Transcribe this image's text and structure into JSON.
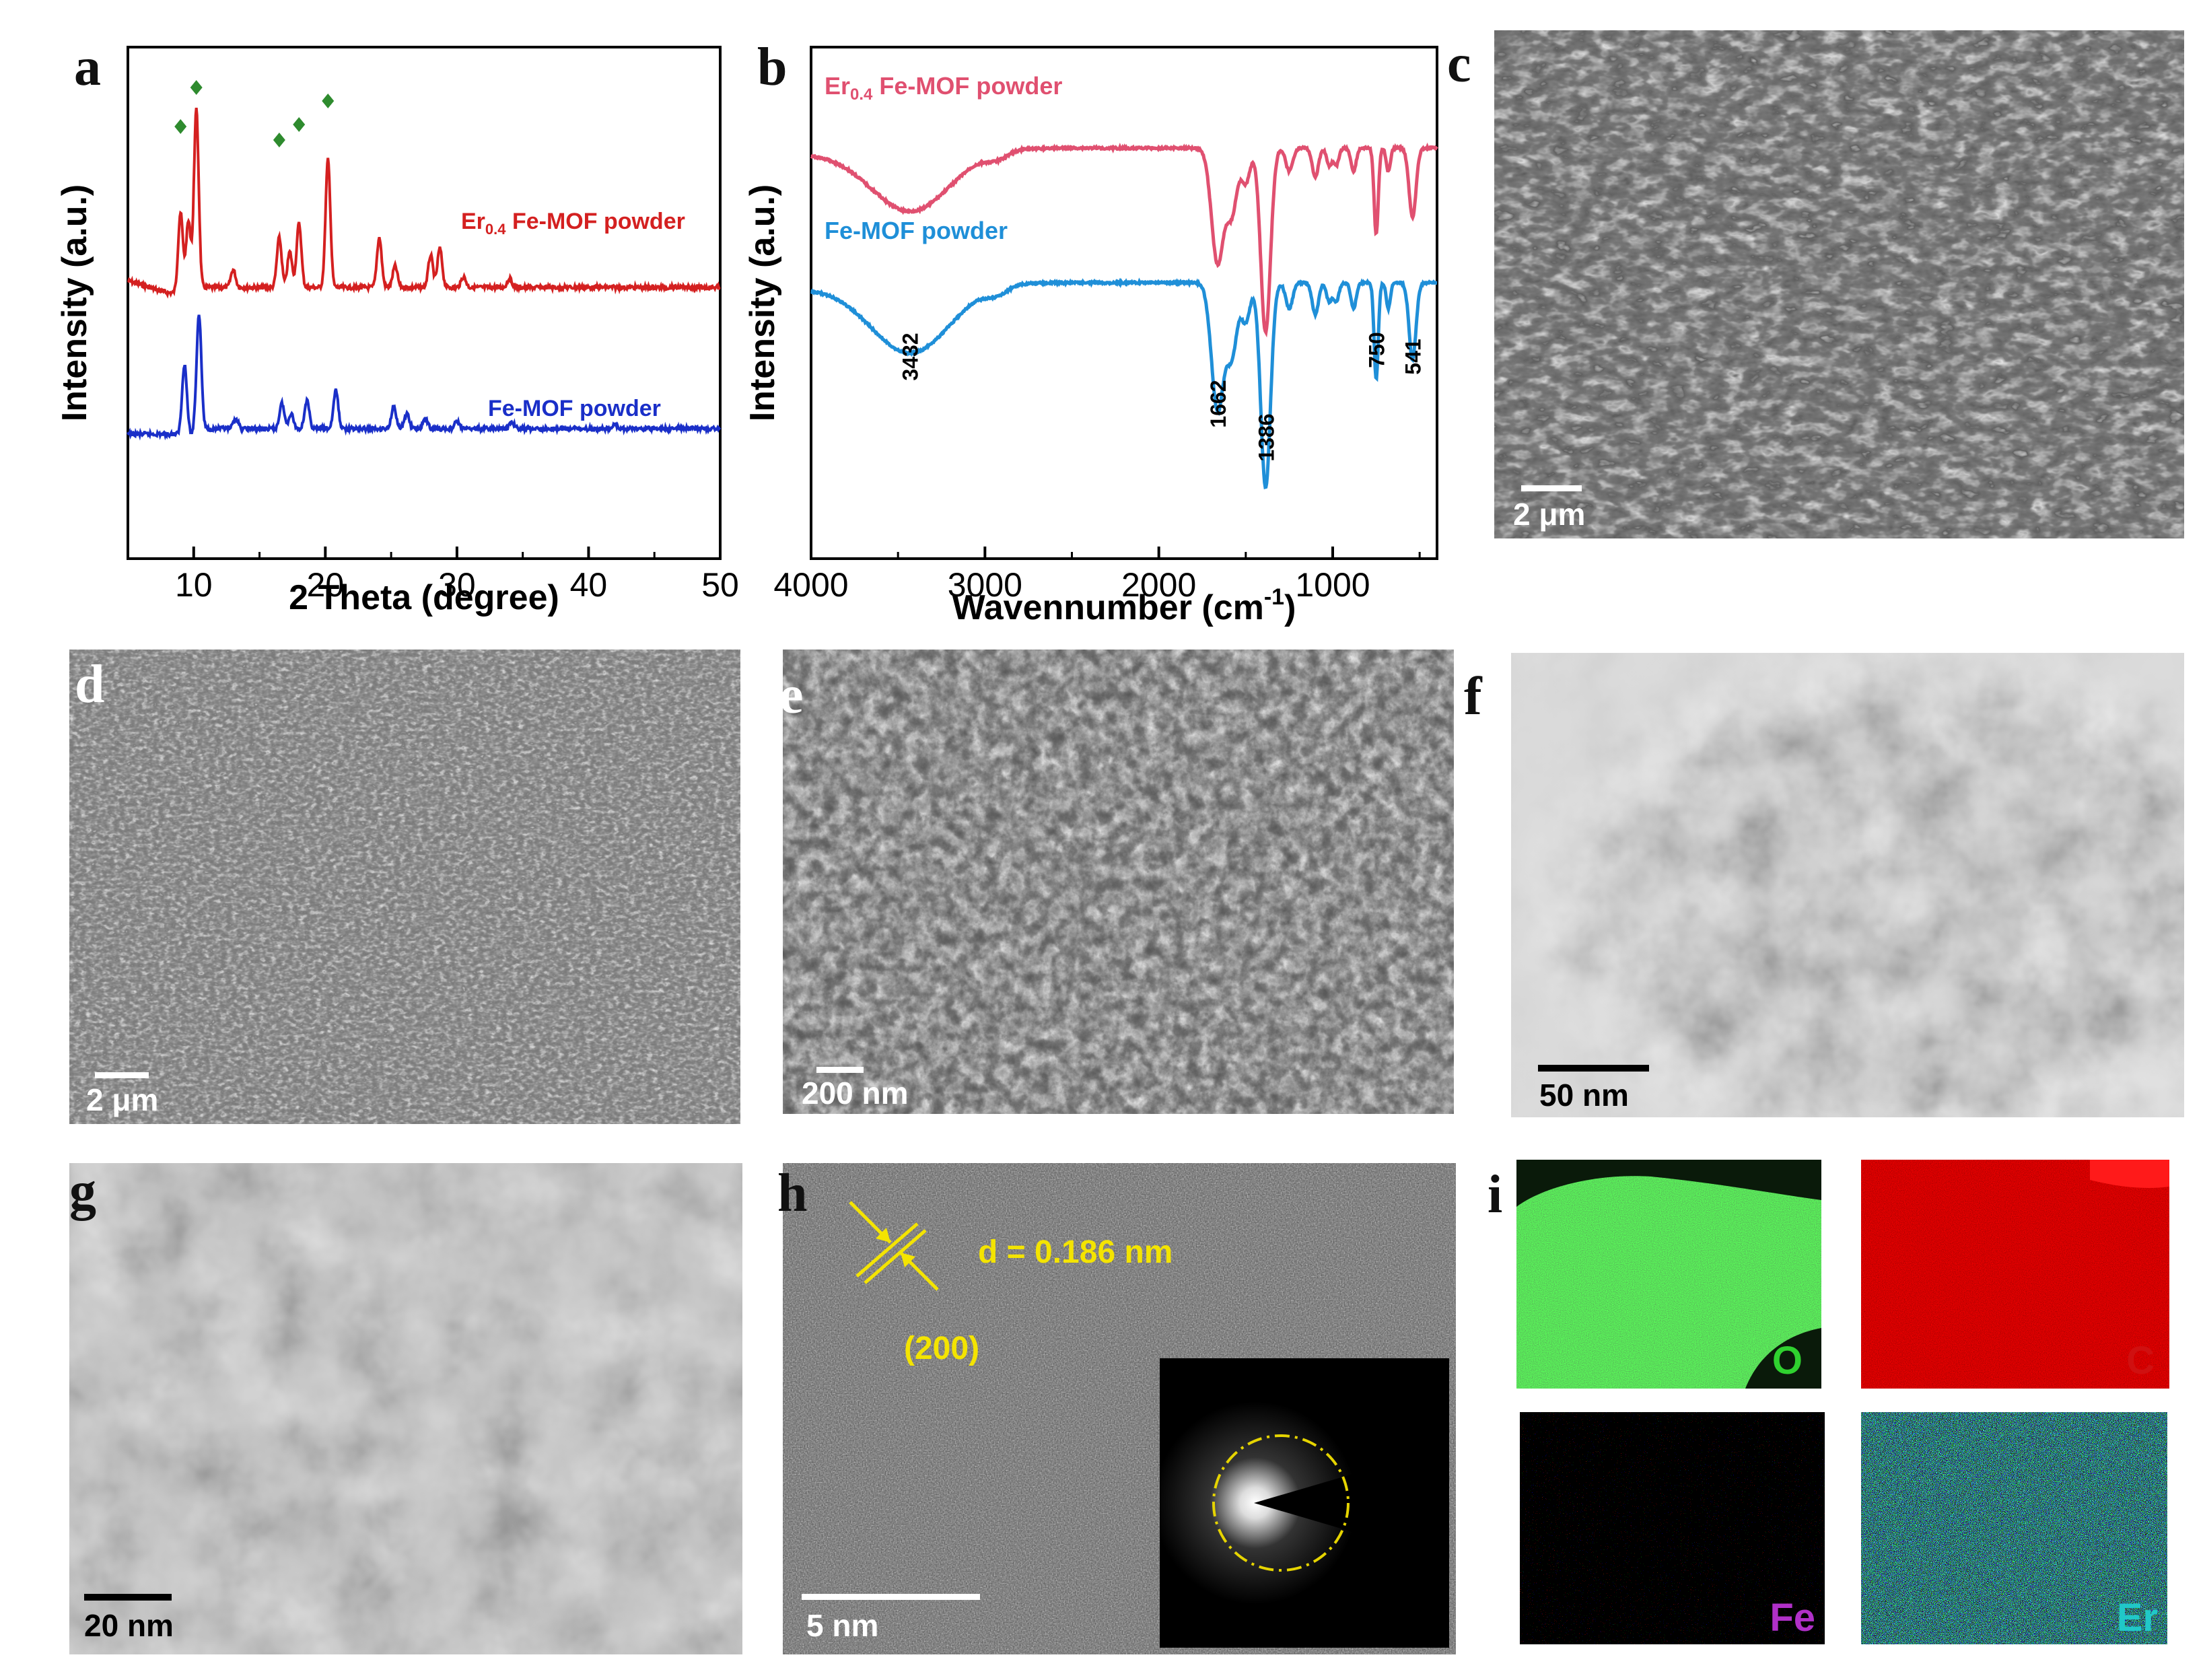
{
  "panels": {
    "a": {
      "letter": "a"
    },
    "b": {
      "letter": "b"
    },
    "c": {
      "letter": "c",
      "scale": "2 μm"
    },
    "d": {
      "letter": "d",
      "scale": "2 μm"
    },
    "e": {
      "letter": "e",
      "scale": "200 nm"
    },
    "f": {
      "letter": "f",
      "scale": "50 nm"
    },
    "g": {
      "letter": "g",
      "scale": "20 nm"
    },
    "h": {
      "letter": "h",
      "scale": "5 nm",
      "d_spacing": "d = 0.186 nm",
      "plane": "(200)"
    },
    "i": {
      "letter": "i",
      "maps": [
        "O",
        "C",
        "Fe",
        "Er"
      ],
      "map_colors": [
        "#2fd12f",
        "#d01010",
        "#b030c8",
        "#20c8c8"
      ]
    }
  },
  "chart_data": [
    {
      "type": "line",
      "panel": "a",
      "xlabel": "2 Theta (degree)",
      "ylabel": "Intensity (a.u.)",
      "xlim": [
        5,
        50
      ],
      "xticks": [
        10,
        20,
        30,
        40,
        50
      ],
      "series": [
        {
          "name": "Er0.4 Fe-MOF powder",
          "label_main": "Er",
          "label_sub": "0.4",
          "label_rest": " Fe-MOF powder",
          "color": "#d42020",
          "peaks": [
            [
              9.0,
              0.45
            ],
            [
              9.6,
              0.4
            ],
            [
              10.2,
              1.0
            ],
            [
              13.0,
              0.1
            ],
            [
              16.5,
              0.28
            ],
            [
              17.3,
              0.2
            ],
            [
              18.0,
              0.36
            ],
            [
              20.2,
              0.72
            ],
            [
              24.1,
              0.28
            ],
            [
              25.3,
              0.12
            ],
            [
              28.0,
              0.18
            ],
            [
              28.7,
              0.22
            ],
            [
              30.5,
              0.06
            ],
            [
              34.0,
              0.05
            ]
          ]
        },
        {
          "name": "Fe-MOF powder",
          "label_main": "Fe-MOF powder",
          "label_sub": "",
          "label_rest": "",
          "color": "#1a2fc8",
          "peaks": [
            [
              9.3,
              0.55
            ],
            [
              10.4,
              0.9
            ],
            [
              13.2,
              0.08
            ],
            [
              16.7,
              0.2
            ],
            [
              17.4,
              0.12
            ],
            [
              18.6,
              0.22
            ],
            [
              20.8,
              0.3
            ],
            [
              25.2,
              0.18
            ],
            [
              26.2,
              0.12
            ],
            [
              27.6,
              0.08
            ],
            [
              30.0,
              0.06
            ],
            [
              34.2,
              0.05
            ],
            [
              42.0,
              0.03
            ]
          ]
        }
      ],
      "markers_2theta": [
        9.0,
        10.2,
        16.5,
        18.0,
        20.2
      ],
      "marker_color": "#2e8b2e"
    },
    {
      "type": "line",
      "panel": "b",
      "xlabel": "Wavennumber (cm",
      "xlabel_sup": "-1",
      "xlabel_close": ")",
      "ylabel": "Intensity (a.u.)",
      "xlim": [
        4000,
        400
      ],
      "xticks": [
        4000,
        3000,
        2000,
        1000
      ],
      "peak_labels": [
        "3432",
        "1662",
        "1386",
        "750",
        "541"
      ],
      "peak_positions": [
        3432,
        1662,
        1386,
        750,
        541
      ],
      "series": [
        {
          "name": "Er0.4 Fe-MOF powder",
          "label_main": "Er",
          "label_sub": "0.4",
          "label_rest": " Fe-MOF powder",
          "color": "#e05070"
        },
        {
          "name": "Fe-MOF powder",
          "label_main": "Fe-MOF powder",
          "label_sub": "",
          "label_rest": "",
          "color": "#1f8fd8"
        }
      ],
      "bands": [
        [
          3432,
          0.55,
          230
        ],
        [
          2930,
          0.06,
          60
        ],
        [
          1662,
          1.0,
          35
        ],
        [
          1580,
          0.55,
          30
        ],
        [
          1500,
          0.3,
          25
        ],
        [
          1386,
          1.6,
          28
        ],
        [
          1250,
          0.2,
          20
        ],
        [
          1100,
          0.25,
          18
        ],
        [
          1020,
          0.15,
          15
        ],
        [
          980,
          0.15,
          15
        ],
        [
          880,
          0.2,
          15
        ],
        [
          750,
          0.75,
          12
        ],
        [
          680,
          0.2,
          12
        ],
        [
          541,
          0.6,
          20
        ]
      ]
    }
  ]
}
